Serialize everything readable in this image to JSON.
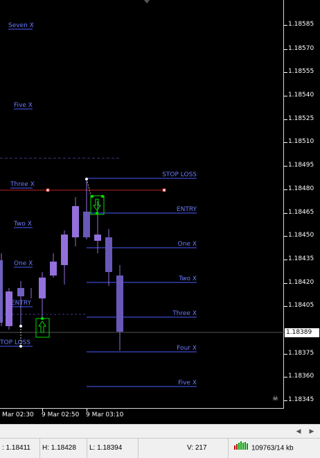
{
  "price_axis": {
    "labels": [
      "1.18585",
      "1.18570",
      "1.18555",
      "1.18540",
      "1.18525",
      "1.18510",
      "1.18495",
      "1.18480",
      "1.18465",
      "1.18450",
      "1.18435",
      "1.18420",
      "1.18405",
      "1.18375",
      "1.18360",
      "1.18345"
    ],
    "current_price": "1.18389"
  },
  "time_axis": {
    "labels": [
      "Mar 02:30",
      "9 Mar 02:50",
      "9 Mar 03:10"
    ]
  },
  "left_levels": [
    "Seven X",
    "Five X",
    "Three X",
    "Two X",
    "One X",
    "ENTRY",
    "TOP LOSS"
  ],
  "right_levels": [
    "STOP LOSS",
    "ENTRY",
    "One X",
    "Two X",
    "Three X",
    "Four X",
    "Five X"
  ],
  "colors": {
    "candle": "#9370db",
    "level_line": "#4b5cff",
    "stop_line": "#c02020",
    "arrow_box": "#00e000"
  },
  "status": {
    "low_open": ": 1.18411",
    "high": "H: 1.18428",
    "low": "L: 1.18394",
    "volume": "V: 217",
    "traffic": "109763/14 kb"
  },
  "icons": {
    "skull": "☠",
    "scroll_left": "◀",
    "scroll_right": "▶"
  }
}
